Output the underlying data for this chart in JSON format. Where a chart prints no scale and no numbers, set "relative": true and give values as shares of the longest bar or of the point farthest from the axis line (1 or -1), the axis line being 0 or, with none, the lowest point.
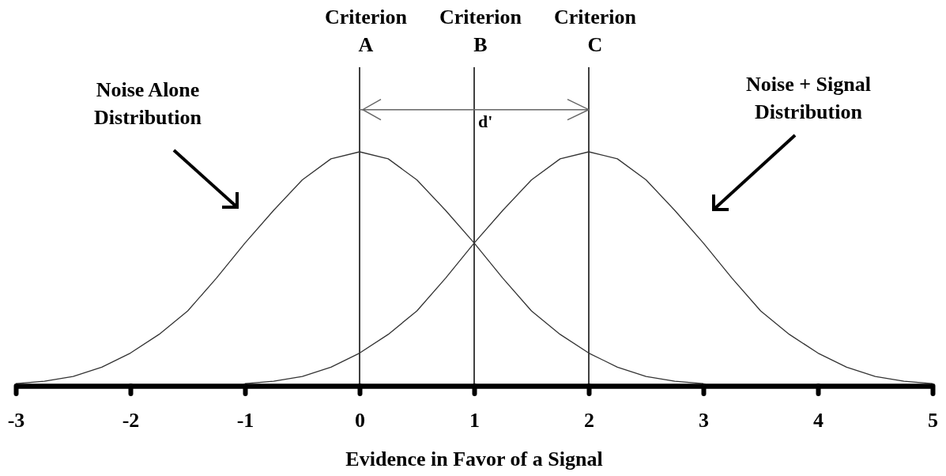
{
  "chart_data": {
    "type": "line",
    "relative": true,
    "xlabel": "Evidence in Favor of a Signal",
    "xlim": [
      -3,
      5
    ],
    "xticks": [
      -3,
      -2,
      -1,
      0,
      1,
      2,
      3,
      4,
      5
    ],
    "series": [
      {
        "name": "Noise Alone Distribution",
        "color": "#333333",
        "x": [
          -3,
          -2.75,
          -2.5,
          -2.25,
          -2,
          -1.75,
          -1.5,
          -1.25,
          -1,
          -0.75,
          -0.5,
          -0.25,
          0,
          0.25,
          0.5,
          0.75,
          1,
          1.25,
          1.5,
          1.75,
          2,
          2.25,
          2.5,
          2.75,
          3
        ],
        "values": [
          0.01,
          0.02,
          0.04,
          0.08,
          0.14,
          0.22,
          0.32,
          0.46,
          0.61,
          0.75,
          0.88,
          0.97,
          1,
          0.97,
          0.88,
          0.75,
          0.61,
          0.46,
          0.32,
          0.22,
          0.14,
          0.08,
          0.04,
          0.02,
          0.01
        ]
      },
      {
        "name": "Noise + Signal Distribution",
        "color": "#333333",
        "x": [
          -1,
          -0.75,
          -0.5,
          -0.25,
          0,
          0.25,
          0.5,
          0.75,
          1,
          1.25,
          1.5,
          1.75,
          2,
          2.25,
          2.5,
          2.75,
          3,
          3.25,
          3.5,
          3.75,
          4,
          4.25,
          4.5,
          4.75,
          5
        ],
        "values": [
          0.01,
          0.02,
          0.04,
          0.08,
          0.14,
          0.22,
          0.32,
          0.46,
          0.61,
          0.75,
          0.88,
          0.97,
          1,
          0.97,
          0.88,
          0.75,
          0.61,
          0.46,
          0.32,
          0.22,
          0.14,
          0.08,
          0.04,
          0.02,
          0.01
        ]
      }
    ],
    "ref_lines": [
      {
        "axis": "x",
        "value": 0,
        "label": "Criterion A",
        "color": "#000000"
      },
      {
        "axis": "x",
        "value": 1,
        "label": "Criterion B",
        "color": "#000000"
      },
      {
        "axis": "x",
        "value": 2,
        "label": "Criterion C",
        "color": "#000000"
      }
    ],
    "annotations": [
      {
        "text": "d'",
        "x": 1,
        "y": 1.17
      }
    ]
  }
}
